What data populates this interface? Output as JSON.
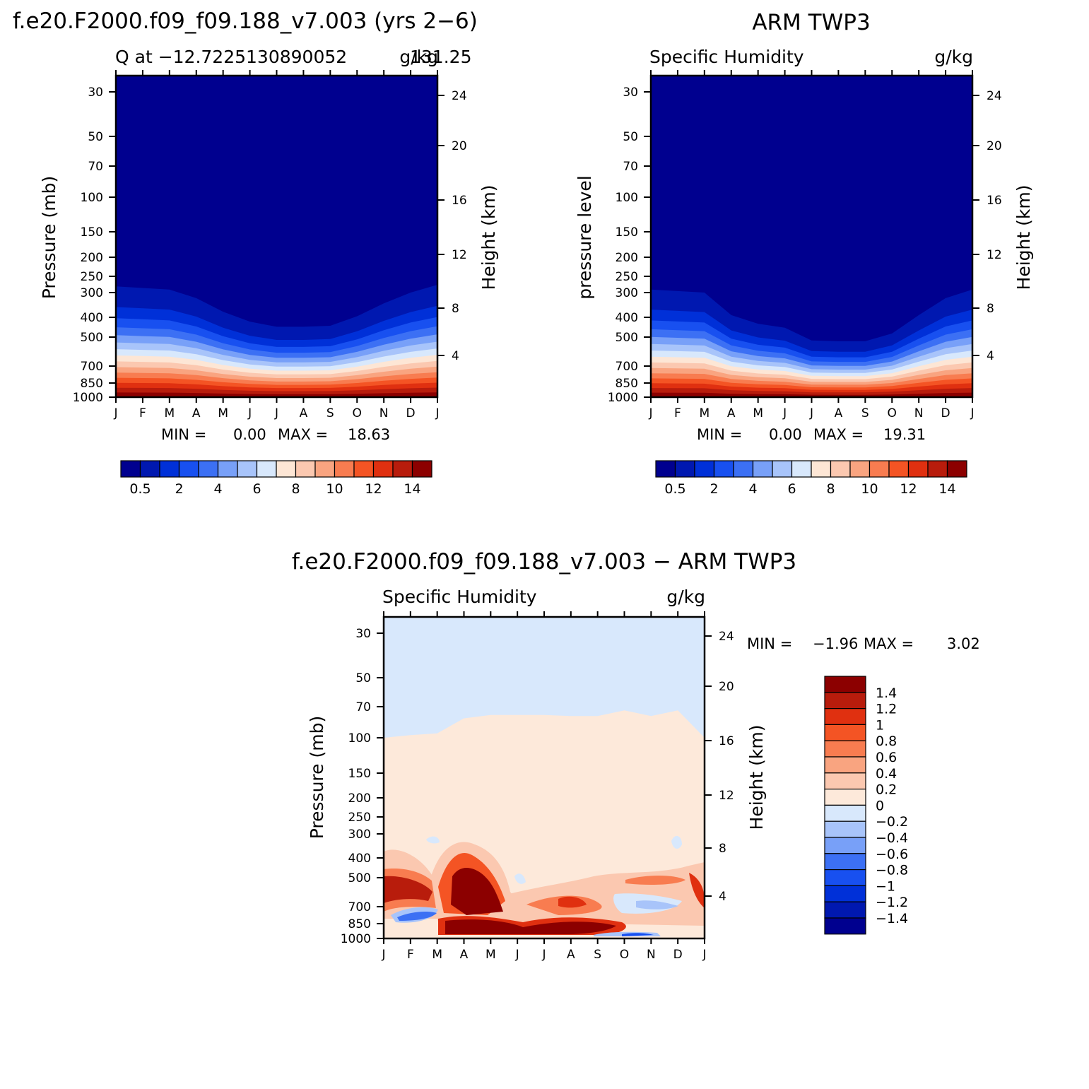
{
  "colors": {
    "q_fill": [
      "#00008f",
      "#0018b0",
      "#0030d8",
      "#1850f0",
      "#3c70f4",
      "#78a0f8",
      "#a8c4fa",
      "#d8e8fc",
      "#fde6d5",
      "#fbc8b0",
      "#f9a480",
      "#f87c50",
      "#f45424",
      "#e03010",
      "#b81c0c",
      "#8c0000"
    ],
    "diff_fill": [
      "#00008f",
      "#0018b0",
      "#0030d8",
      "#1850f0",
      "#3c70f4",
      "#78a0f8",
      "#a8c4fa",
      "#d8e8fc",
      "#fde9da",
      "#fbc8b0",
      "#f9a480",
      "#f87c50",
      "#f45424",
      "#e03010",
      "#b81c0c",
      "#8c0000"
    ]
  },
  "figure": {
    "top_left_title": "f.e20.F2000.f09_f09.188_v7.003 (yrs 2−6)",
    "top_right_title": "ARM TWP3",
    "bottom_title": "f.e20.F2000.f09_f09.188_v7.003 − ARM TWP3"
  },
  "chart_data": [
    {
      "type": "heatmap",
      "name": "model",
      "subtitle_left": "Q at −12.7225130890052",
      "subtitle_overlap": "131.25",
      "subtitle_right": "g/kg",
      "ylabel": "Pressure (mb)",
      "ylabel_right": "Height (km)",
      "x_ticks": [
        "J",
        "F",
        "M",
        "A",
        "M",
        "J",
        "J",
        "A",
        "S",
        "O",
        "N",
        "D",
        "J"
      ],
      "p_ticks": [
        30,
        50,
        70,
        100,
        150,
        200,
        250,
        300,
        400,
        500,
        700,
        850,
        1000
      ],
      "km_ticks": [
        24,
        20,
        16,
        12,
        8,
        4
      ],
      "min_label": "MIN =",
      "min_value": "0.00",
      "max_label": "MAX =",
      "max_value": "18.63",
      "colorbar_labels": [
        "0.5",
        "2",
        "4",
        "6",
        "8",
        "10",
        "12",
        "14"
      ],
      "top_of_moisture_hpa_by_month": [
        280,
        285,
        290,
        320,
        375,
        420,
        445,
        445,
        440,
        395,
        340,
        300,
        275
      ]
    },
    {
      "type": "heatmap",
      "name": "obs",
      "subtitle_left": "Specific Humidity",
      "subtitle_right": "g/kg",
      "ylabel": "pressure level",
      "ylabel_right": "Height (km)",
      "x_ticks": [
        "J",
        "F",
        "M",
        "A",
        "M",
        "J",
        "J",
        "A",
        "S",
        "O",
        "N",
        "D",
        "J"
      ],
      "p_ticks": [
        30,
        50,
        70,
        100,
        150,
        200,
        250,
        300,
        400,
        500,
        700,
        850,
        1000
      ],
      "km_ticks": [
        24,
        20,
        16,
        12,
        8,
        4
      ],
      "min_label": "MIN =",
      "min_value": "0.00",
      "max_label": "MAX =",
      "max_value": "19.31",
      "colorbar_labels": [
        "0.5",
        "2",
        "4",
        "6",
        "8",
        "10",
        "12",
        "14"
      ],
      "top_of_moisture_hpa_by_month": [
        290,
        295,
        300,
        390,
        430,
        450,
        520,
        525,
        525,
        480,
        390,
        320,
        290
      ]
    },
    {
      "type": "heatmap",
      "name": "difference",
      "subtitle_left": "Specific Humidity",
      "subtitle_right": "g/kg",
      "ylabel": "Pressure (mb)",
      "ylabel_right": "Height (km)",
      "x_ticks": [
        "J",
        "F",
        "M",
        "A",
        "M",
        "J",
        "J",
        "A",
        "S",
        "O",
        "N",
        "D",
        "J"
      ],
      "p_ticks": [
        30,
        50,
        70,
        100,
        150,
        200,
        250,
        300,
        400,
        500,
        700,
        850,
        1000
      ],
      "km_ticks": [
        24,
        20,
        16,
        12,
        8,
        4
      ],
      "min_label": "MIN =",
      "min_value": "−1.96",
      "max_label": "MAX =",
      "max_value": "3.02",
      "colorbar_labels": [
        "1.4",
        "1.2",
        "1",
        "0.8",
        "0.6",
        "0.4",
        "0.2",
        "0",
        "−0.2",
        "−0.4",
        "−0.6",
        "−0.8",
        "−1",
        "−1.2",
        "−1.4"
      ],
      "zero_contour_hpa_by_month": [
        100,
        97,
        95,
        80,
        77,
        77,
        77,
        78,
        78,
        73,
        78,
        73,
        100
      ]
    }
  ]
}
